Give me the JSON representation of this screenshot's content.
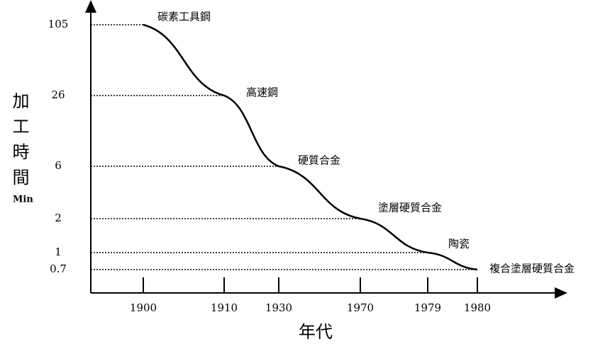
{
  "chart_data": {
    "type": "line",
    "y_label": "加工時間",
    "y_unit": "Min",
    "x_label": "年代",
    "categories": [
      "1900",
      "1910",
      "1930",
      "1970",
      "1979",
      "1980"
    ],
    "values": [
      105,
      26,
      6,
      2,
      1,
      0.7
    ],
    "point_labels": [
      "碳素工具鋼",
      "高速鋼",
      "硬質合金",
      "塗層硬質合金",
      "陶瓷",
      "複合塗層硬質合金"
    ],
    "yticks": [
      105,
      26,
      6,
      2,
      1,
      0.7
    ],
    "color": "#000000"
  }
}
